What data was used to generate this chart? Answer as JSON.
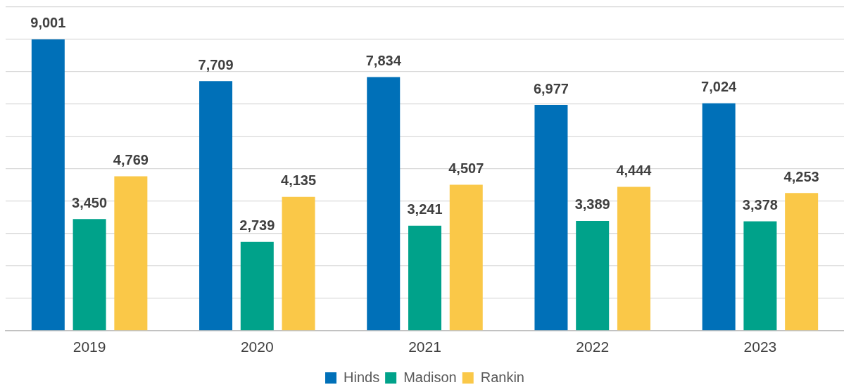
{
  "chart_data": {
    "type": "bar",
    "categories": [
      "2019",
      "2020",
      "2021",
      "2022",
      "2023"
    ],
    "series": [
      {
        "name": "Hinds",
        "color": "#0070b8",
        "values": [
          9001,
          7709,
          7834,
          6977,
          7024
        ],
        "value_labels": [
          "9,001",
          "7,709",
          "7,834",
          "6,977",
          "7,024"
        ]
      },
      {
        "name": "Madison",
        "color": "#00a28a",
        "values": [
          3450,
          2739,
          3241,
          3389,
          3378
        ],
        "value_labels": [
          "3,450",
          "2,739",
          "3,241",
          "3,389",
          "3,378"
        ]
      },
      {
        "name": "Rankin",
        "color": "#fac848",
        "values": [
          4769,
          4135,
          4507,
          4444,
          4253
        ],
        "value_labels": [
          "4,769",
          "4,135",
          "4,507",
          "4,444",
          "4,253"
        ]
      }
    ],
    "tick_labels": "x",
    "grid": "y",
    "legend": "bottom"
  }
}
